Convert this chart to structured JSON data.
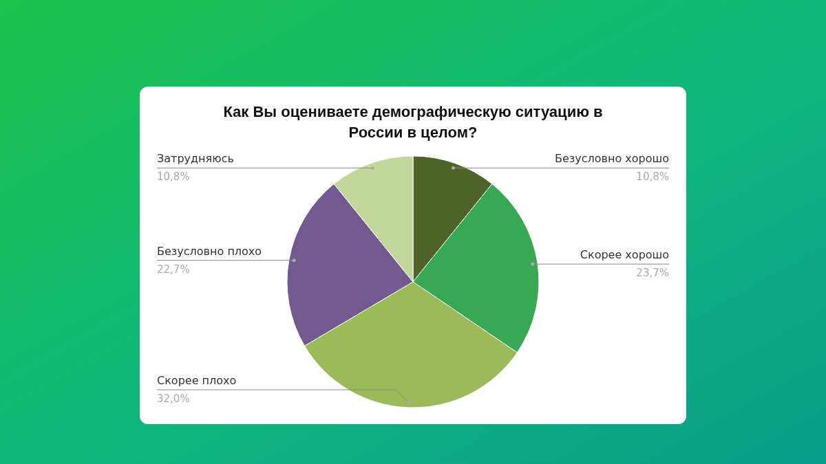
{
  "chart_data": {
    "type": "pie",
    "title": "Как Вы оцениваете демографическую ситуацию в\nРоссии в целом?",
    "categories": [
      "Безусловно хорошо",
      "Скорее хорошо",
      "Скорее плохо",
      "Безусловно плохо",
      "Затрудняюсь"
    ],
    "values": [
      10.8,
      23.7,
      32.0,
      22.7,
      10.8
    ],
    "value_labels": [
      "10,8%",
      "23,7%",
      "32,0%",
      "22,7%",
      "10,8%"
    ],
    "colors": [
      "#4f6228",
      "#38a854",
      "#9bbb59",
      "#725990",
      "#c3d69b"
    ]
  }
}
